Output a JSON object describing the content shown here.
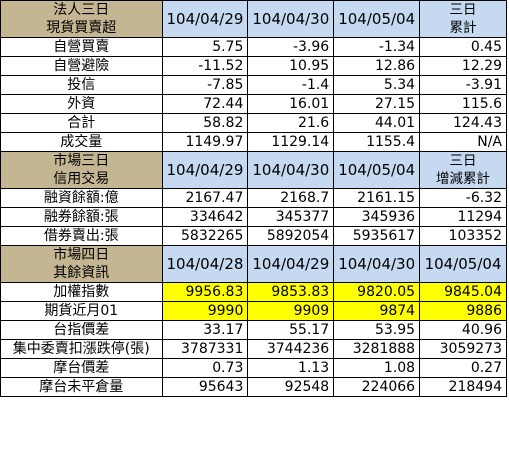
{
  "section1": {
    "header": {
      "label_line1": "法人三日",
      "label_line2": "現貨買賣超",
      "dates": [
        "104/04/29",
        "104/04/30",
        "104/05/04"
      ],
      "cum_line1": "三日",
      "cum_line2": "累計"
    },
    "rows": [
      {
        "label": "自營買賣",
        "values": [
          "5.75",
          "-3.96",
          "-1.34",
          "0.45"
        ]
      },
      {
        "label": "自營避險",
        "values": [
          "-11.52",
          "10.95",
          "12.86",
          "12.29"
        ]
      },
      {
        "label": "投信",
        "values": [
          "-7.85",
          "-1.4",
          "5.34",
          "-3.91"
        ]
      },
      {
        "label": "外資",
        "values": [
          "72.44",
          "16.01",
          "27.15",
          "115.6"
        ]
      },
      {
        "label": "合計",
        "values": [
          "58.82",
          "21.6",
          "44.01",
          "124.43"
        ]
      },
      {
        "label": "成交量",
        "values": [
          "1149.97",
          "1129.14",
          "1155.4",
          "N/A"
        ]
      }
    ]
  },
  "section2": {
    "header": {
      "label_line1": "市場三日",
      "label_line2": "信用交易",
      "dates": [
        "104/04/29",
        "104/04/30",
        "104/05/04"
      ],
      "cum_line1": "三日",
      "cum_line2": "增減累計"
    },
    "rows": [
      {
        "label": "融資餘額:億",
        "values": [
          "2167.47",
          "2168.7",
          "2161.15",
          "-6.32"
        ]
      },
      {
        "label": "融券餘額:張",
        "values": [
          "334642",
          "345377",
          "345936",
          "11294"
        ]
      },
      {
        "label": "借券賣出:張",
        "values": [
          "5832265",
          "5892054",
          "5935617",
          "103352"
        ]
      }
    ]
  },
  "section3": {
    "header": {
      "label_line1": "市場四日",
      "label_line2": "其餘資訊",
      "dates": [
        "104/04/28",
        "104/04/29",
        "104/04/30",
        "104/05/04"
      ]
    },
    "rows": [
      {
        "label": "加權指數",
        "values": [
          "9956.83",
          "9853.83",
          "9820.05",
          "9845.04"
        ],
        "highlight": true
      },
      {
        "label": "期貨近月01",
        "values": [
          "9990",
          "9909",
          "9874",
          "9886"
        ],
        "highlight": true
      },
      {
        "label": "台指價差",
        "values": [
          "33.17",
          "55.17",
          "53.95",
          "40.96"
        ]
      },
      {
        "label": "集中委賣扣漲跌停(張)",
        "values": [
          "3787331",
          "3744236",
          "3281888",
          "3059273"
        ]
      },
      {
        "label": "摩台價差",
        "values": [
          "0.73",
          "1.13",
          "1.08",
          "0.27"
        ]
      },
      {
        "label": "摩台未平倉量",
        "values": [
          "95643",
          "92548",
          "224066",
          "218494"
        ]
      }
    ]
  },
  "colors": {
    "header_left_bg": "#c4b692",
    "header_date_bg": "#c5d9f1",
    "highlight_bg": "#ffff00",
    "border": "#000000"
  }
}
